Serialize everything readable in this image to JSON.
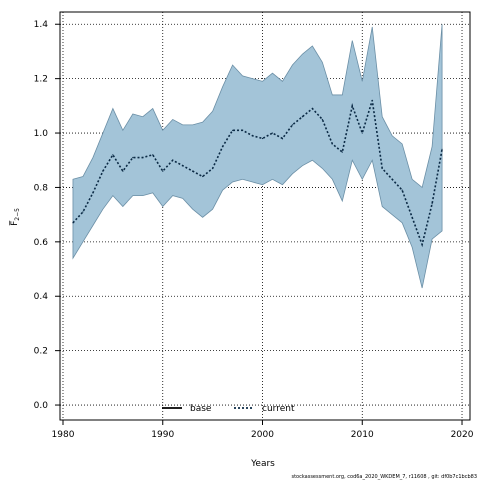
{
  "chart_data": {
    "type": "line",
    "title": "",
    "xlabel": "Years",
    "ylabel": "F̅",
    "ylabel_sub": "2−5",
    "xlim": [
      1980,
      2020
    ],
    "ylim": [
      0,
      1.4
    ],
    "xticks": [
      1980,
      1990,
      2000,
      2010,
      2020
    ],
    "yticks": [
      0.0,
      0.2,
      0.4,
      0.6,
      0.8,
      1.0,
      1.2,
      1.4
    ],
    "ytick_labels": [
      "0.0",
      "0.2",
      "0.4",
      "0.6",
      "0.8",
      "1.0",
      "1.2",
      "1.4"
    ],
    "grid": true,
    "band_color": "#a3c4d8",
    "band_edge_color": "#6b8fa6",
    "x": [
      1981,
      1982,
      1983,
      1984,
      1985,
      1986,
      1987,
      1988,
      1989,
      1990,
      1991,
      1992,
      1993,
      1994,
      1995,
      1996,
      1997,
      1998,
      1999,
      2000,
      2001,
      2002,
      2003,
      2004,
      2005,
      2006,
      2007,
      2008,
      2009,
      2010,
      2011,
      2012,
      2013,
      2014,
      2015,
      2016,
      2017,
      2018
    ],
    "series": [
      {
        "name": "current",
        "style": "dotted",
        "color": "#0b2a45",
        "values": [
          0.67,
          0.71,
          0.78,
          0.86,
          0.92,
          0.86,
          0.91,
          0.91,
          0.92,
          0.86,
          0.9,
          0.88,
          0.86,
          0.84,
          0.87,
          0.95,
          1.01,
          1.01,
          0.99,
          0.98,
          1.0,
          0.98,
          1.03,
          1.06,
          1.09,
          1.05,
          0.96,
          0.93,
          1.1,
          1.0,
          1.12,
          0.87,
          0.83,
          0.79,
          0.69,
          0.59,
          0.74,
          0.94
        ],
        "lower": [
          0.54,
          0.6,
          0.66,
          0.72,
          0.77,
          0.73,
          0.77,
          0.77,
          0.78,
          0.73,
          0.77,
          0.76,
          0.72,
          0.69,
          0.72,
          0.79,
          0.82,
          0.83,
          0.82,
          0.81,
          0.83,
          0.81,
          0.85,
          0.88,
          0.9,
          0.87,
          0.83,
          0.75,
          0.9,
          0.83,
          0.9,
          0.73,
          0.7,
          0.67,
          0.58,
          0.43,
          0.61,
          0.64
        ],
        "upper": [
          0.83,
          0.84,
          0.91,
          1.0,
          1.09,
          1.01,
          1.07,
          1.06,
          1.09,
          1.01,
          1.05,
          1.03,
          1.03,
          1.04,
          1.08,
          1.17,
          1.25,
          1.21,
          1.2,
          1.19,
          1.22,
          1.19,
          1.25,
          1.29,
          1.32,
          1.26,
          1.14,
          1.14,
          1.34,
          1.19,
          1.39,
          1.06,
          0.99,
          0.96,
          0.83,
          0.8,
          0.95,
          1.4
        ]
      }
    ],
    "legend": {
      "placement": "bottom-center",
      "items": [
        {
          "label": "base",
          "style": "solid",
          "color": "#000000"
        },
        {
          "label": "current",
          "style": "dotted",
          "color": "#0b2a45"
        }
      ]
    },
    "footnote": "stockassessment.org, cod6a_2020_WKDEM_7, r11608 , git: df0b7c1bcb83"
  }
}
